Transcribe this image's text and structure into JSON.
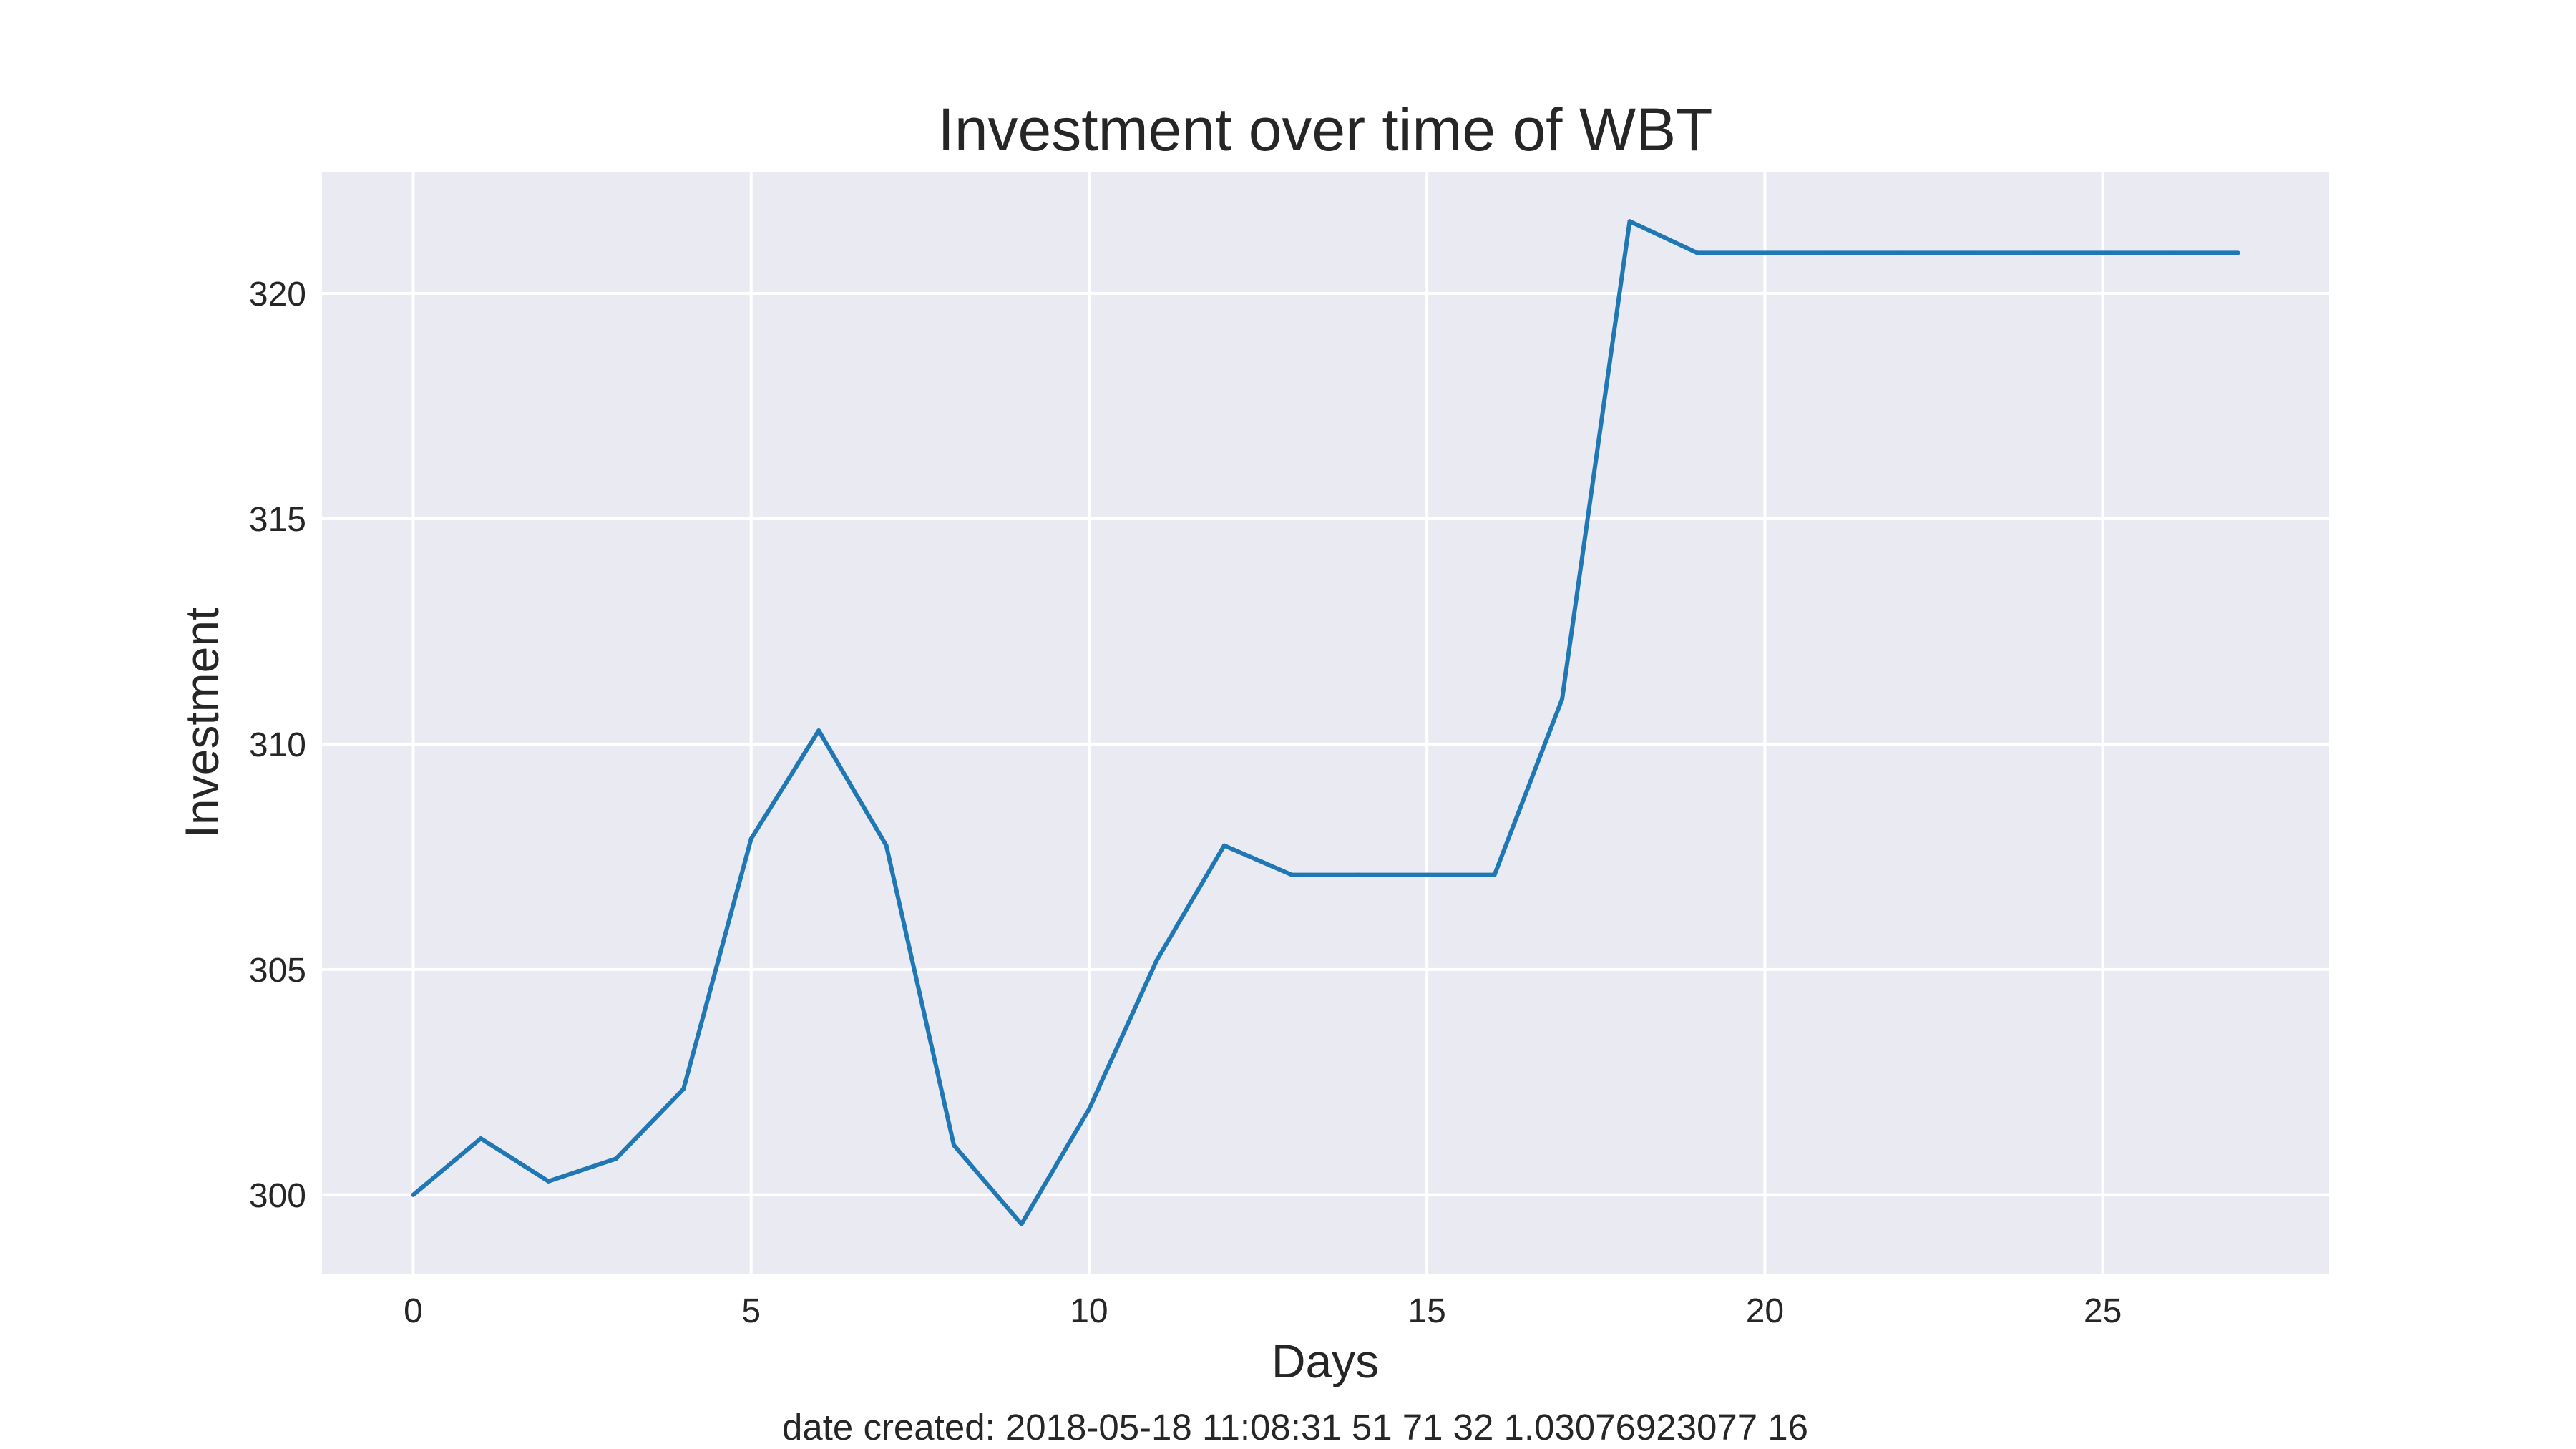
{
  "chart_data": {
    "type": "line",
    "title": "Investment over time of WBT",
    "xlabel": "Days",
    "ylabel": "Investment",
    "xlim": [
      -1.35,
      28.35
    ],
    "ylim": [
      298.25,
      322.7
    ],
    "x_ticks": [
      0,
      5,
      10,
      15,
      20,
      25
    ],
    "y_ticks": [
      300,
      305,
      310,
      315,
      320
    ],
    "grid": true,
    "legend": "none",
    "background_color": "#eaeaf2",
    "line_color": "#1f77b4",
    "series": [
      {
        "x": [
          0,
          1,
          2,
          3,
          4,
          5,
          6,
          7,
          8,
          9,
          10,
          11,
          12,
          13,
          14,
          15,
          16,
          17,
          18,
          19,
          20,
          21,
          22,
          23,
          24,
          25,
          26,
          27
        ],
        "values": [
          300.0,
          301.25,
          300.3,
          300.8,
          302.35,
          307.9,
          310.3,
          307.75,
          301.1,
          299.35,
          301.9,
          305.2,
          307.75,
          307.1,
          307.1,
          307.1,
          307.1,
          311.0,
          321.6,
          320.9,
          320.9,
          320.9,
          320.9,
          320.9,
          320.9,
          320.9,
          320.9,
          320.9
        ]
      }
    ]
  },
  "footer": {
    "text": "date created: 2018-05-18 11:08:31 51 71 32 1.03076923077 16"
  }
}
